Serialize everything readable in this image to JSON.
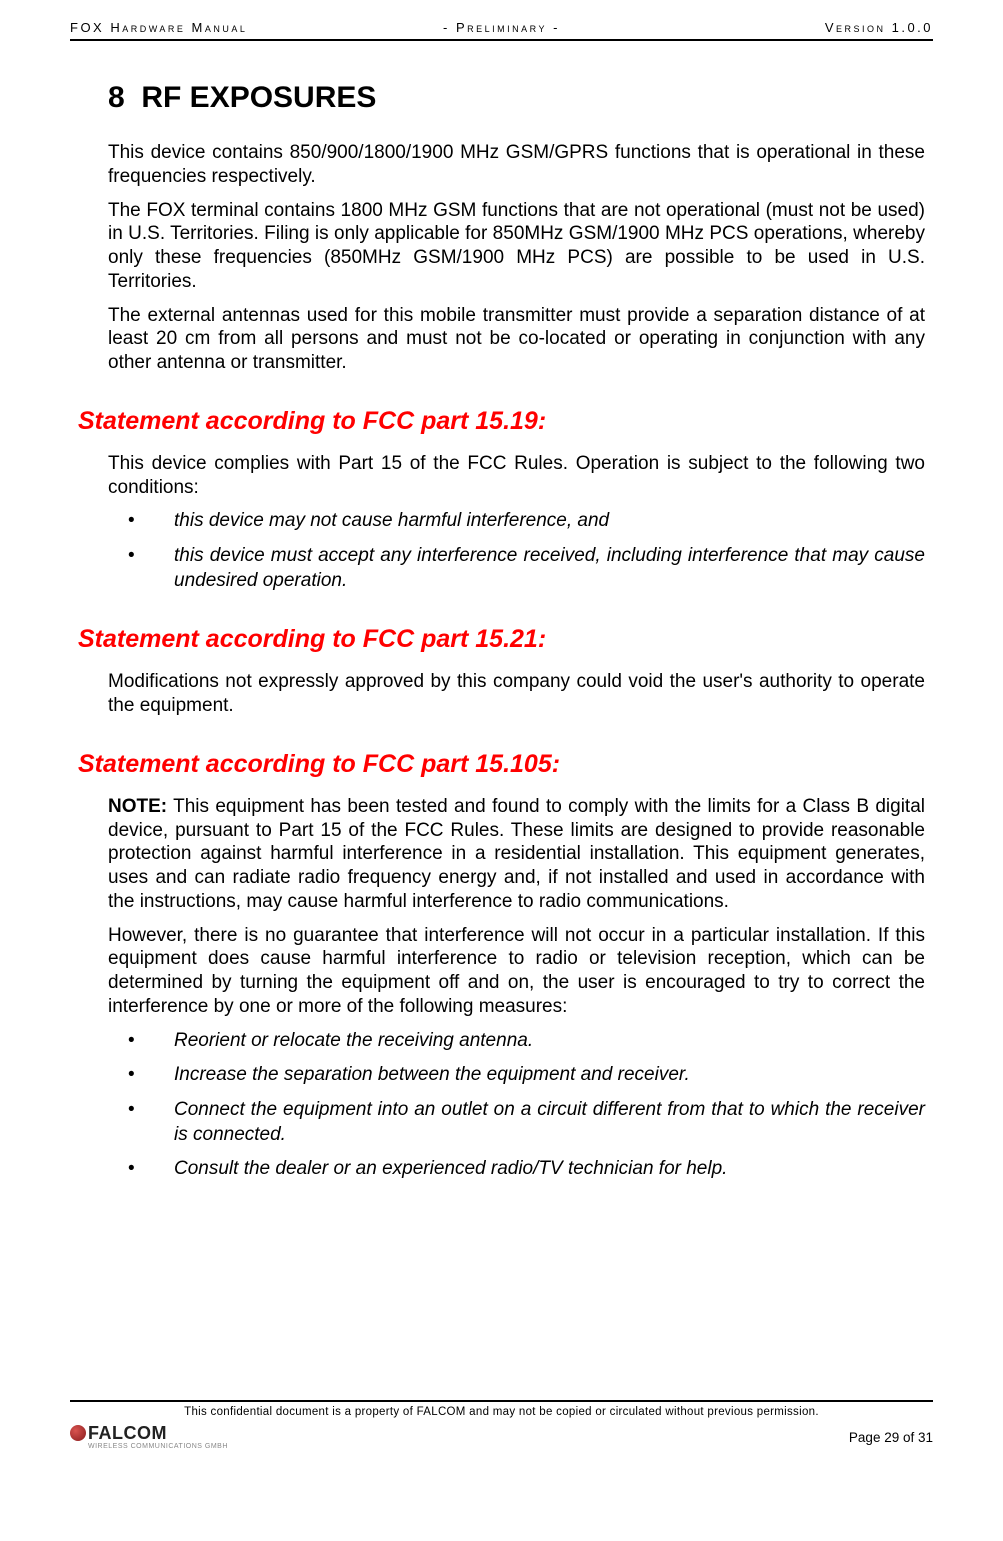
{
  "header": {
    "left": "FOX Hardware Manual",
    "center": "- Preliminary -",
    "right": "Version 1.0.0"
  },
  "chapter": {
    "number": "8",
    "title": "RF EXPOSURES"
  },
  "intro_paras": [
    "This device contains 850/900/1800/1900 MHz GSM/GPRS functions that is operational in these frequencies respectively.",
    "The FOX terminal contains 1800 MHz GSM functions that are not operational (must not be used) in U.S. Territories. Filing is only applicable for 850MHz GSM/1900 MHz PCS operations, whereby only these frequencies (850MHz GSM/1900 MHz PCS) are possible to be used in U.S. Territories.",
    "The external antennas used for this mobile transmitter must provide a separation distance of at least 20 cm from all persons and must not be co-located or operating in conjunction with any other antenna or transmitter."
  ],
  "sections": [
    {
      "heading": "Statement according to FCC part 15.19:",
      "paras": [
        "This device complies with Part 15 of the FCC Rules. Operation is subject to the following two conditions:"
      ],
      "bullets": [
        "this device may not cause harmful interference, and",
        "this device must accept any interference received, including interference that may cause  undesired operation."
      ]
    },
    {
      "heading": "Statement according to FCC part 15.21:",
      "paras": [
        "Modifications not expressly approved by this company could void the user's authority to operate the equipment."
      ],
      "bullets": []
    },
    {
      "heading": "Statement according to FCC part 15.105:",
      "note_label": "NOTE:",
      "note_body": " This equipment has been tested and found to comply with the limits for a Class B digital device, pursuant to Part 15 of the FCC Rules. These limits are designed to provide reasonable protection against harmful interference in a residential installation. This equipment generates, uses and can radiate radio frequency energy and, if not installed and used in accordance with the instructions, may cause harmful interference to radio communications.",
      "paras": [
        "However, there is no guarantee that interference will not occur in a particular installation. If this equipment does cause harmful interference to radio or television reception, which can be determined by turning the equipment off and on, the user is encouraged to try to correct the interference by one or more of the following measures:"
      ],
      "bullets": [
        "Reorient or relocate the receiving antenna.",
        "Increase the separation between the equipment and receiver.",
        "Connect the equipment into an outlet on a circuit different from that to which the receiver is connected.",
        "Consult the dealer or an experienced radio/TV technician for help."
      ]
    }
  ],
  "footer": {
    "confidential": "This confidential document is a property of FALCOM and may not be copied or circulated without previous permission.",
    "logo_main": "FALCOM",
    "logo_sub": "WIRELESS COMMUNICATIONS GMBH",
    "page_label": "Page 29 of 31"
  },
  "colors": {
    "heading_red": "#ff0000",
    "text": "#000000",
    "rule": "#000000"
  }
}
